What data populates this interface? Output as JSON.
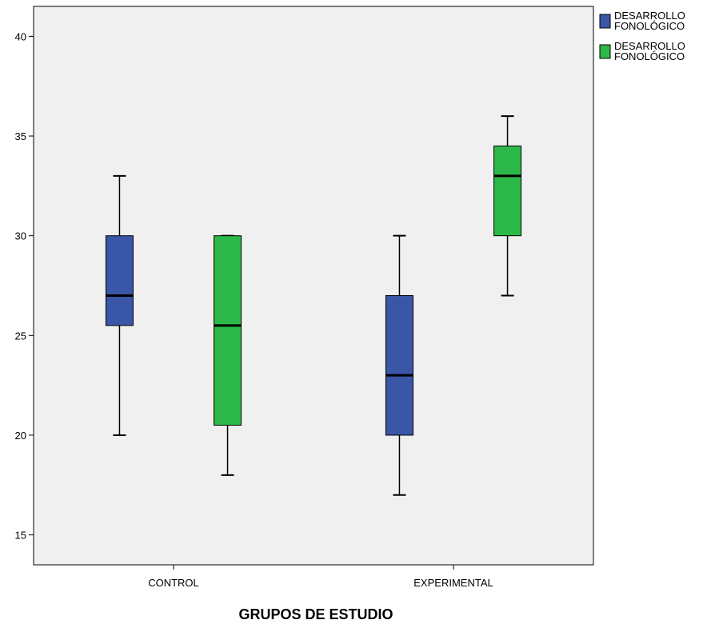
{
  "chart_data": {
    "type": "boxplot",
    "title": "",
    "xlabel": "GRUPOS DE ESTUDIO",
    "ylabel": "",
    "ylim": [
      13.5,
      41.5
    ],
    "yticks": [
      15,
      20,
      25,
      30,
      35,
      40
    ],
    "ytick_labels": [
      "15",
      "20",
      "25",
      "30",
      "35",
      "40"
    ],
    "categories": [
      "CONTROL",
      "EXPERIMENTAL"
    ],
    "grid": false,
    "legend_position": "top-right, outside plot",
    "series": [
      {
        "name": "DESARROLLO FONOLÓGICO",
        "color": "#3a56a7",
        "boxes": [
          {
            "category": "CONTROL",
            "min": 20,
            "q1": 25.5,
            "median": 27,
            "q3": 30,
            "max": 33
          },
          {
            "category": "EXPERIMENTAL",
            "min": 17,
            "q1": 20,
            "median": 23,
            "q3": 27,
            "max": 30
          }
        ]
      },
      {
        "name": "DESARROLLO FONOLÓGICO",
        "color": "#2db84a",
        "boxes": [
          {
            "category": "CONTROL",
            "min": 18,
            "q1": 20.5,
            "median": 25.5,
            "q3": 30,
            "max": 30
          },
          {
            "category": "EXPERIMENTAL",
            "min": 27,
            "q1": 30,
            "median": 33,
            "q3": 34.5,
            "max": 36
          }
        ]
      }
    ],
    "legend": [
      {
        "line1": "DESARROLLO",
        "line2": "FONOLÓGICO",
        "color": "#3a56a7"
      },
      {
        "line1": "DESARROLLO",
        "line2": "FONOLÓGICO",
        "color": "#2db84a"
      }
    ]
  }
}
